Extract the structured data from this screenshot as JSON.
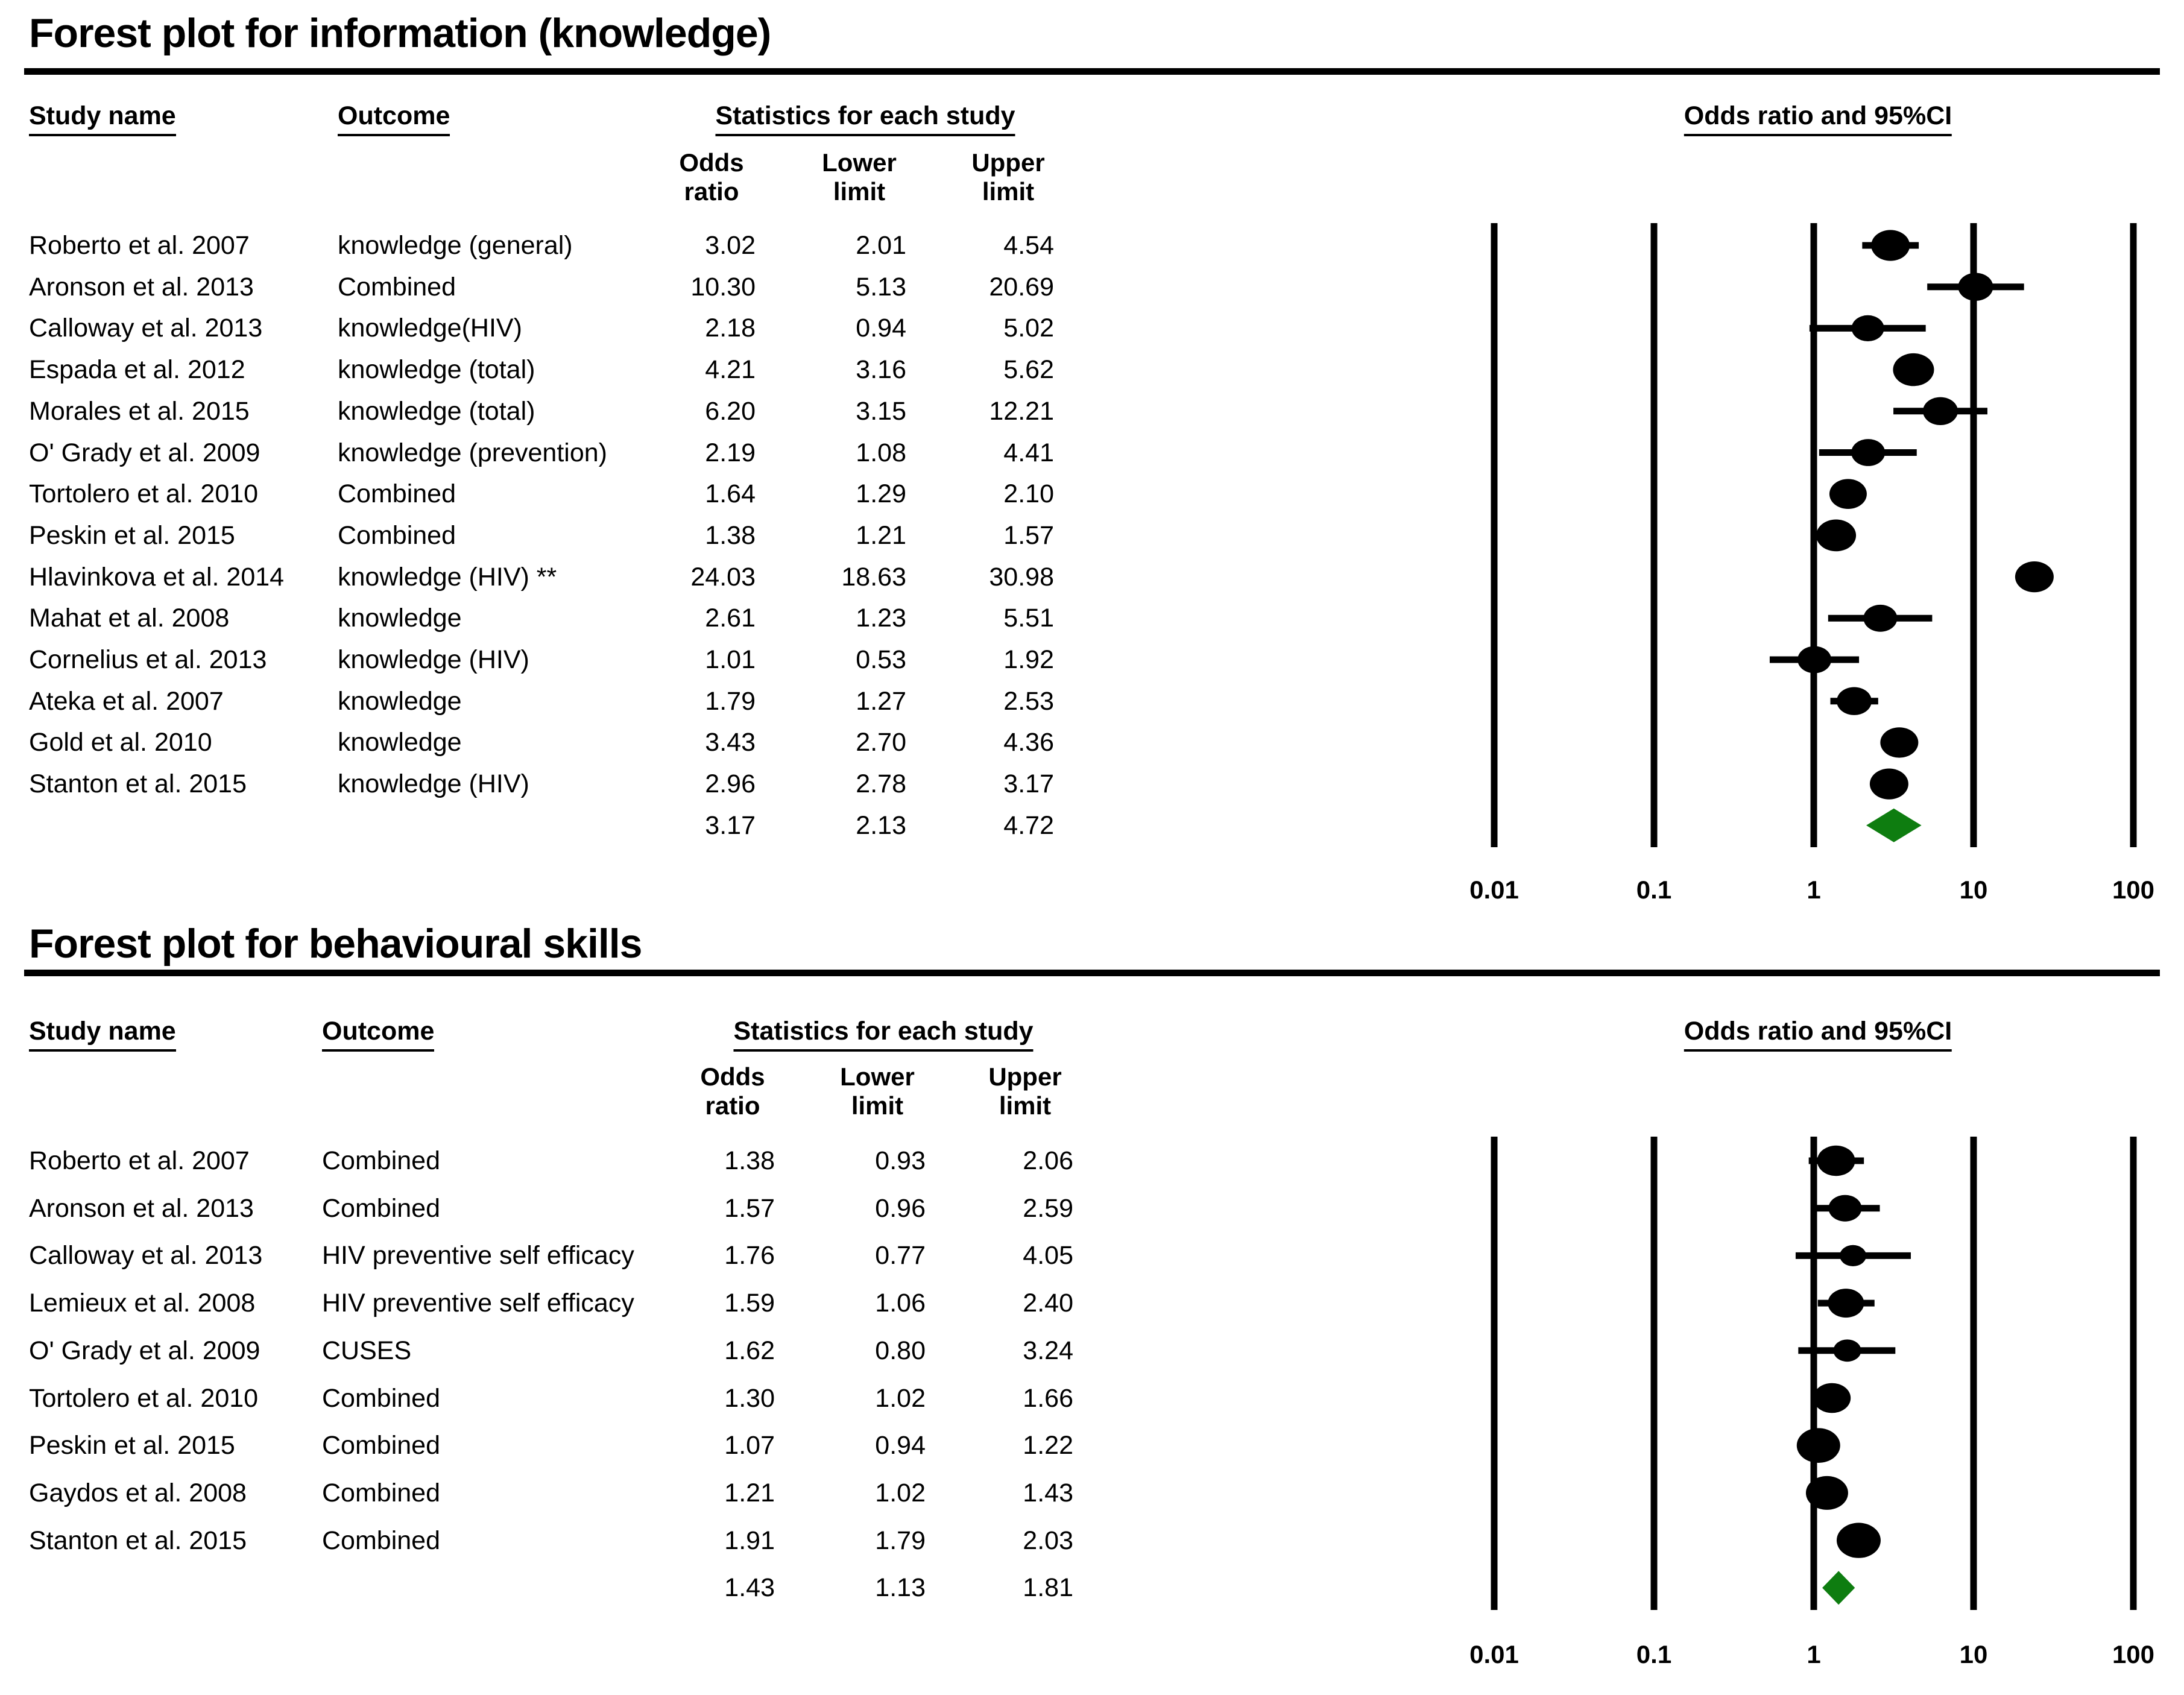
{
  "page": {
    "background": "#ffffff",
    "text_color": "#000000",
    "summary_diamond_color": "#0e7d10"
  },
  "headers": {
    "study": "Study name",
    "outcome": "Outcome",
    "stats": "Statistics for each study",
    "orci": "Odds ratio and 95%CI",
    "odds1": "Odds",
    "odds2": "ratio",
    "lower1": "Lower",
    "lower2": "limit",
    "upper1": "Upper",
    "upper2": "limit"
  },
  "chart_data": [
    {
      "type": "scatter",
      "chart_variant": "forest_plot",
      "title": "Forest plot for information (knowledge)",
      "x_scale": "log10",
      "x_ticks": [
        0.01,
        0.1,
        1,
        10,
        100
      ],
      "x_tick_labels": [
        "0.01",
        "0.1",
        "1",
        "10",
        "100"
      ],
      "columns": [
        "Study name",
        "Outcome",
        "Odds ratio",
        "Lower limit",
        "Upper limit"
      ],
      "studies": [
        {
          "name": "Roberto et al. 2007",
          "outcome": "knowledge (general)",
          "or": "3.02",
          "lower": "2.01",
          "upper": "4.54",
          "dot_size": 64
        },
        {
          "name": "Aronson et al. 2013",
          "outcome": "Combined",
          "or": "10.30",
          "lower": "5.13",
          "upper": "20.69",
          "dot_size": 58
        },
        {
          "name": "Calloway et al. 2013",
          "outcome": "knowledge(HIV)",
          "or": "2.18",
          "lower": "0.94",
          "upper": "5.02",
          "dot_size": 54
        },
        {
          "name": "Espada et al. 2012",
          "outcome": "knowledge (total)",
          "or": "4.21",
          "lower": "3.16",
          "upper": "5.62",
          "dot_size": 68
        },
        {
          "name": "Morales et al. 2015",
          "outcome": "knowledge (total)",
          "or": "6.20",
          "lower": "3.15",
          "upper": "12.21",
          "dot_size": 58
        },
        {
          "name": "O' Grady et al. 2009",
          "outcome": "knowledge (prevention)",
          "or": "2.19",
          "lower": "1.08",
          "upper": "4.41",
          "dot_size": 56
        },
        {
          "name": "Tortolero et al. 2010",
          "outcome": "Combined",
          "or": "1.64",
          "lower": "1.29",
          "upper": "2.10",
          "dot_size": 62
        },
        {
          "name": "Peskin et al. 2015",
          "outcome": "Combined",
          "or": "1.38",
          "lower": "1.21",
          "upper": "1.57",
          "dot_size": 66
        },
        {
          "name": "Hlavinkova et al. 2014",
          "outcome": "knowledge (HIV) **",
          "or": "24.03",
          "lower": "18.63",
          "upper": "30.98",
          "dot_size": 64
        },
        {
          "name": "Mahat et al. 2008",
          "outcome": "knowledge",
          "or": "2.61",
          "lower": "1.23",
          "upper": "5.51",
          "dot_size": 56
        },
        {
          "name": "Cornelius et al. 2013",
          "outcome": "knowledge (HIV)",
          "or": "1.01",
          "lower": "0.53",
          "upper": "1.92",
          "dot_size": 56
        },
        {
          "name": "Ateka et al. 2007",
          "outcome": "knowledge",
          "or": "1.79",
          "lower": "1.27",
          "upper": "2.53",
          "dot_size": 58
        },
        {
          "name": "Gold et al. 2010",
          "outcome": "knowledge",
          "or": "3.43",
          "lower": "2.70",
          "upper": "4.36",
          "dot_size": 63
        },
        {
          "name": "Stanton et al. 2015",
          "outcome": "knowledge (HIV)",
          "or": "2.96",
          "lower": "2.78",
          "upper": "3.17",
          "dot_size": 64
        }
      ],
      "summary": {
        "or": "3.17",
        "lower": "2.13",
        "upper": "4.72"
      }
    },
    {
      "type": "scatter",
      "chart_variant": "forest_plot",
      "title": "Forest plot for behavioural skills",
      "x_scale": "log10",
      "x_ticks": [
        0.01,
        0.1,
        1,
        10,
        100
      ],
      "x_tick_labels": [
        "0.01",
        "0.1",
        "1",
        "10",
        "100"
      ],
      "columns": [
        "Study name",
        "Outcome",
        "Odds ratio",
        "Lower limit",
        "Upper limit"
      ],
      "studies": [
        {
          "name": "Roberto et al. 2007",
          "outcome": "Combined",
          "or": "1.38",
          "lower": "0.93",
          "upper": "2.06",
          "dot_size": 63
        },
        {
          "name": "Aronson et al. 2013",
          "outcome": "Combined",
          "or": "1.57",
          "lower": "0.96",
          "upper": "2.59",
          "dot_size": 55
        },
        {
          "name": "Calloway et al. 2013",
          "outcome": "HIV preventive self efficacy",
          "or": "1.76",
          "lower": "0.77",
          "upper": "4.05",
          "dot_size": 44
        },
        {
          "name": "Lemieux et al. 2008",
          "outcome": "HIV preventive self efficacy",
          "or": "1.59",
          "lower": "1.06",
          "upper": "2.40",
          "dot_size": 60
        },
        {
          "name": "O' Grady et al. 2009",
          "outcome": "CUSES",
          "or": "1.62",
          "lower": "0.80",
          "upper": "3.24",
          "dot_size": 46
        },
        {
          "name": "Tortolero et al. 2010",
          "outcome": "Combined",
          "or": "1.30",
          "lower": "1.02",
          "upper": "1.66",
          "dot_size": 62
        },
        {
          "name": "Peskin et al. 2015",
          "outcome": "Combined",
          "or": "1.07",
          "lower": "0.94",
          "upper": "1.22",
          "dot_size": 72
        },
        {
          "name": "Gaydos et al. 2008",
          "outcome": "Combined",
          "or": "1.21",
          "lower": "1.02",
          "upper": "1.43",
          "dot_size": 70
        },
        {
          "name": "Stanton et al. 2015",
          "outcome": "Combined",
          "or": "1.91",
          "lower": "1.79",
          "upper": "2.03",
          "dot_size": 73
        }
      ],
      "summary": {
        "or": "1.43",
        "lower": "1.13",
        "upper": "1.81"
      }
    }
  ]
}
